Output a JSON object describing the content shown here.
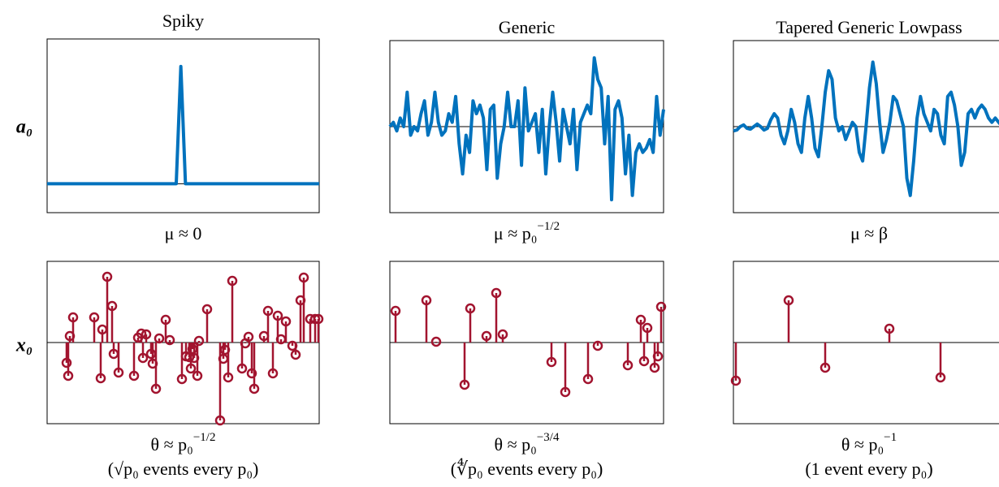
{
  "chart_data": [
    {
      "type": "line",
      "title": "Spiky",
      "ylabel": "a₀",
      "caption": "μ ≈ 0",
      "color": "#0072bd",
      "ylim": [
        -0.2,
        1.0
      ],
      "values": [
        0,
        0,
        0,
        0,
        0,
        0,
        0,
        0,
        0,
        0,
        0,
        0,
        0,
        0,
        0,
        0,
        0,
        0,
        0,
        0,
        0,
        0,
        0,
        0,
        0,
        0,
        0,
        0,
        0,
        0.81,
        0,
        0,
        0,
        0,
        0,
        0,
        0,
        0,
        0,
        0,
        0,
        0,
        0,
        0,
        0,
        0,
        0,
        0,
        0,
        0,
        0,
        0,
        0,
        0,
        0,
        0,
        0,
        0,
        0,
        0
      ]
    },
    {
      "type": "line",
      "title": "Generic",
      "caption": "μ ≈ p₀",
      "caption_sup": "−1/2",
      "color": "#0072bd",
      "ylim": [
        -1,
        1
      ],
      "values": [
        0.0,
        0.05,
        -0.05,
        0.1,
        0.0,
        0.4,
        -0.1,
        0.0,
        -0.05,
        0.15,
        0.3,
        -0.1,
        0.05,
        0.4,
        0.05,
        -0.1,
        -0.05,
        0.15,
        0.05,
        0.35,
        -0.2,
        -0.55,
        -0.1,
        -0.3,
        0.3,
        0.15,
        0.25,
        0.1,
        -0.5,
        0.2,
        0.25,
        -0.6,
        -0.2,
        0.0,
        0.4,
        0.0,
        0.0,
        0.3,
        -0.45,
        0.45,
        -0.05,
        0.05,
        0.15,
        -0.3,
        0.2,
        -0.55,
        0.0,
        0.4,
        0.05,
        -0.4,
        0.2,
        0.0,
        -0.2,
        0.2,
        -0.5,
        0.05,
        0.15,
        0.25,
        0.15,
        0.8,
        0.55,
        0.45,
        -0.2,
        0.35,
        -0.85,
        0.2,
        0.3,
        0.1,
        -0.55,
        -0.1,
        -0.8,
        -0.3,
        -0.2,
        -0.3,
        -0.25,
        -0.15,
        -0.3,
        0.35,
        -0.1,
        0.2
      ]
    },
    {
      "type": "line",
      "title": "Tapered Generic Lowpass",
      "caption": "μ ≈ β",
      "color": "#0072bd",
      "ylim": [
        -1,
        1
      ],
      "values": [
        -0.05,
        -0.04,
        0.0,
        0.02,
        -0.02,
        -0.03,
        0.0,
        0.03,
        0.0,
        -0.04,
        -0.02,
        0.08,
        0.15,
        0.1,
        -0.1,
        -0.2,
        -0.05,
        0.2,
        0.05,
        -0.2,
        -0.3,
        0.1,
        0.35,
        0.1,
        -0.25,
        -0.35,
        0.0,
        0.4,
        0.65,
        0.55,
        0.1,
        -0.05,
        0.0,
        -0.15,
        -0.05,
        0.05,
        0.0,
        -0.3,
        -0.4,
        0.0,
        0.45,
        0.75,
        0.5,
        0.05,
        -0.3,
        -0.15,
        0.05,
        0.35,
        0.3,
        0.15,
        0.0,
        -0.6,
        -0.8,
        -0.4,
        0.1,
        0.35,
        0.15,
        0.05,
        -0.05,
        0.2,
        0.15,
        -0.1,
        -0.2,
        0.35,
        0.4,
        0.25,
        0.0,
        -0.45,
        -0.3,
        0.15,
        0.2,
        0.1,
        0.2,
        0.25,
        0.2,
        0.1,
        0.05,
        0.1,
        0.05,
        0.0,
        0.0
      ]
    },
    {
      "type": "stem",
      "ylabel": "x₀",
      "caption": "θ ≈ p₀",
      "caption_sup": "−1/2",
      "note": "(√p₀ events every p₀)",
      "color": "#a2142f",
      "xlim": [
        0,
        335
      ],
      "ylim": [
        -1,
        1
      ],
      "x": [
        24,
        26,
        28,
        32,
        58,
        66,
        68,
        74,
        80,
        82,
        88,
        107,
        112,
        116,
        118,
        122,
        128,
        130,
        134,
        138,
        146,
        151,
        166,
        171,
        175,
        177,
        179,
        181,
        185,
        187,
        197,
        213,
        217,
        219,
        223,
        228,
        240,
        244,
        248,
        252,
        255,
        267,
        272,
        278,
        284,
        288,
        294,
        302,
        306,
        312,
        316,
        324,
        330,
        334
      ],
      "values": [
        -0.25,
        -0.41,
        0.08,
        0.31,
        0.31,
        -0.44,
        0.16,
        0.81,
        0.45,
        -0.14,
        -0.37,
        -0.41,
        0.06,
        0.11,
        -0.19,
        0.1,
        -0.14,
        -0.26,
        -0.57,
        0.05,
        0.28,
        0.03,
        -0.45,
        -0.17,
        -0.18,
        -0.32,
        -0.08,
        -0.19,
        -0.41,
        0.02,
        0.41,
        -0.96,
        -0.2,
        -0.09,
        -0.43,
        0.76,
        -0.32,
        -0.01,
        0.07,
        -0.38,
        -0.57,
        0.08,
        0.39,
        -0.38,
        0.33,
        0.04,
        0.26,
        -0.04,
        -0.15,
        0.52,
        0.8,
        0.29,
        0.29,
        0.29
      ]
    },
    {
      "type": "stem",
      "caption": "θ ≈ p₀",
      "caption_sup": "−3/4",
      "note": "(∜p₀ events every p₀)",
      "color": "#a2142f",
      "xlim": [
        0,
        337
      ],
      "ylim": [
        -1,
        1
      ],
      "x": [
        7,
        45,
        57,
        92,
        99,
        119,
        131,
        139,
        199,
        216,
        244,
        256,
        293,
        309,
        313,
        317,
        326,
        330,
        334
      ],
      "values": [
        0.39,
        0.52,
        0.01,
        -0.52,
        0.42,
        0.08,
        0.61,
        0.1,
        -0.24,
        -0.61,
        -0.45,
        -0.04,
        -0.28,
        0.28,
        -0.23,
        0.18,
        -0.31,
        -0.17,
        0.44
      ]
    },
    {
      "type": "stem",
      "caption": "θ ≈ p₀",
      "caption_sup": "−1",
      "note": "(1 event every p₀)",
      "color": "#a2142f",
      "xlim": [
        0,
        335
      ],
      "ylim": [
        -1,
        1
      ],
      "x": [
        3,
        68,
        113,
        192,
        255
      ],
      "values": [
        -0.47,
        0.52,
        -0.31,
        0.17,
        -0.43
      ]
    }
  ]
}
